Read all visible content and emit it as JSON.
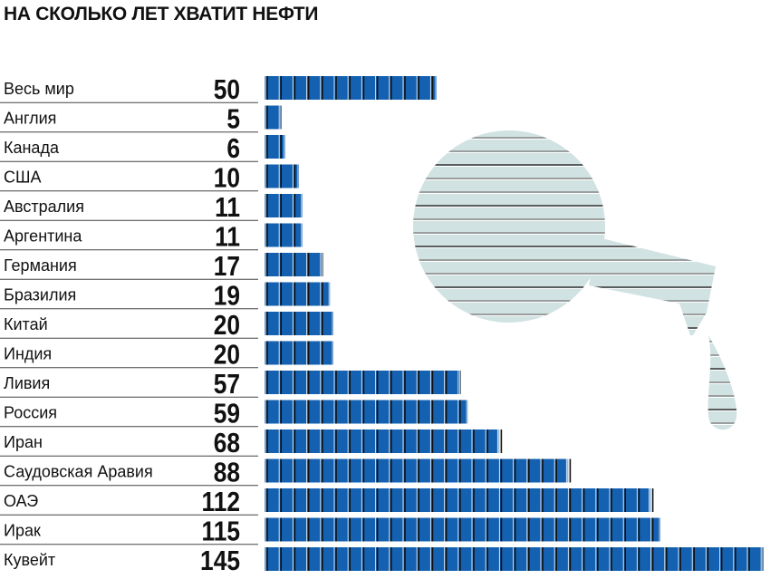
{
  "chart_data": {
    "type": "bar",
    "orientation": "horizontal",
    "title": "НА СКОЛЬКО ЛЕТ ХВАТИТ НЕФТИ",
    "categories": [
      "Весь мир",
      "Англия",
      "Канада",
      "США",
      "Австралия",
      "Аргентина",
      "Германия",
      "Бразилия",
      "Китай",
      "Индия",
      "Ливия",
      "Россия",
      "Иран",
      "Саудовская Аравия",
      "ОАЭ",
      "Ирак",
      "Кувейт"
    ],
    "values": [
      50,
      5,
      6,
      10,
      11,
      11,
      17,
      19,
      20,
      20,
      57,
      59,
      68,
      88,
      112,
      115,
      145
    ],
    "bar_color": "#1361b0",
    "illustration_color": "#d1e2e2",
    "grid": false
  }
}
